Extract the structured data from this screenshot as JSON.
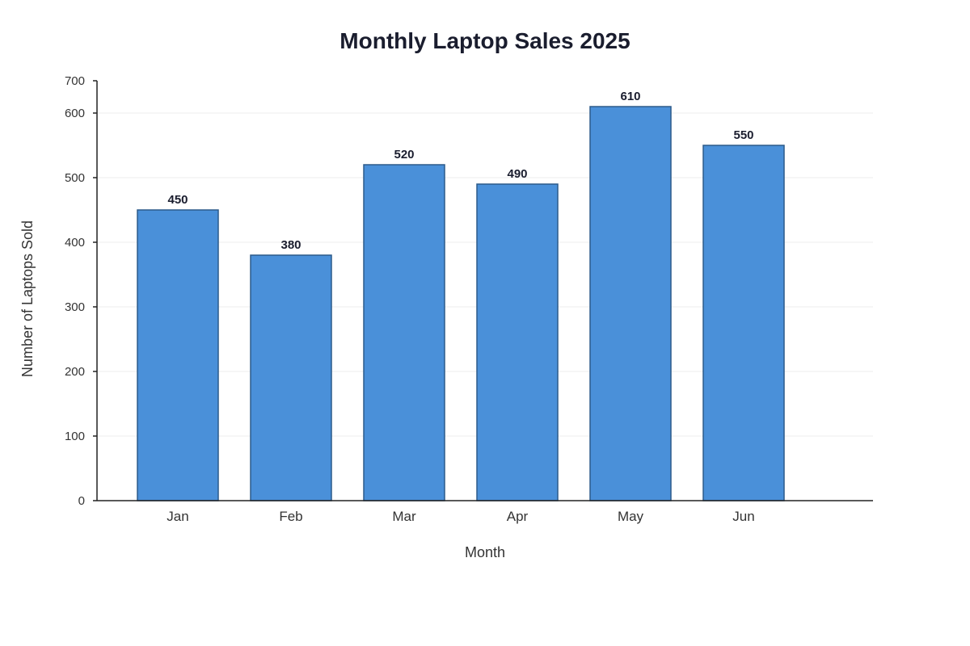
{
  "chart_data": {
    "type": "bar",
    "title": "Monthly Laptop Sales 2025",
    "xlabel": "Month",
    "ylabel": "Number of Laptops Sold",
    "categories": [
      "Jan",
      "Feb",
      "Mar",
      "Apr",
      "May",
      "Jun"
    ],
    "values": [
      450,
      380,
      520,
      490,
      610,
      550
    ],
    "y_ticks": [
      0,
      100,
      200,
      300,
      400,
      500,
      600,
      700
    ],
    "ylim": [
      0,
      700
    ],
    "grid": true,
    "legend": "none",
    "colors": {
      "bar_fill": "#4a90d9",
      "bar_stroke": "#2c5a8a"
    }
  }
}
